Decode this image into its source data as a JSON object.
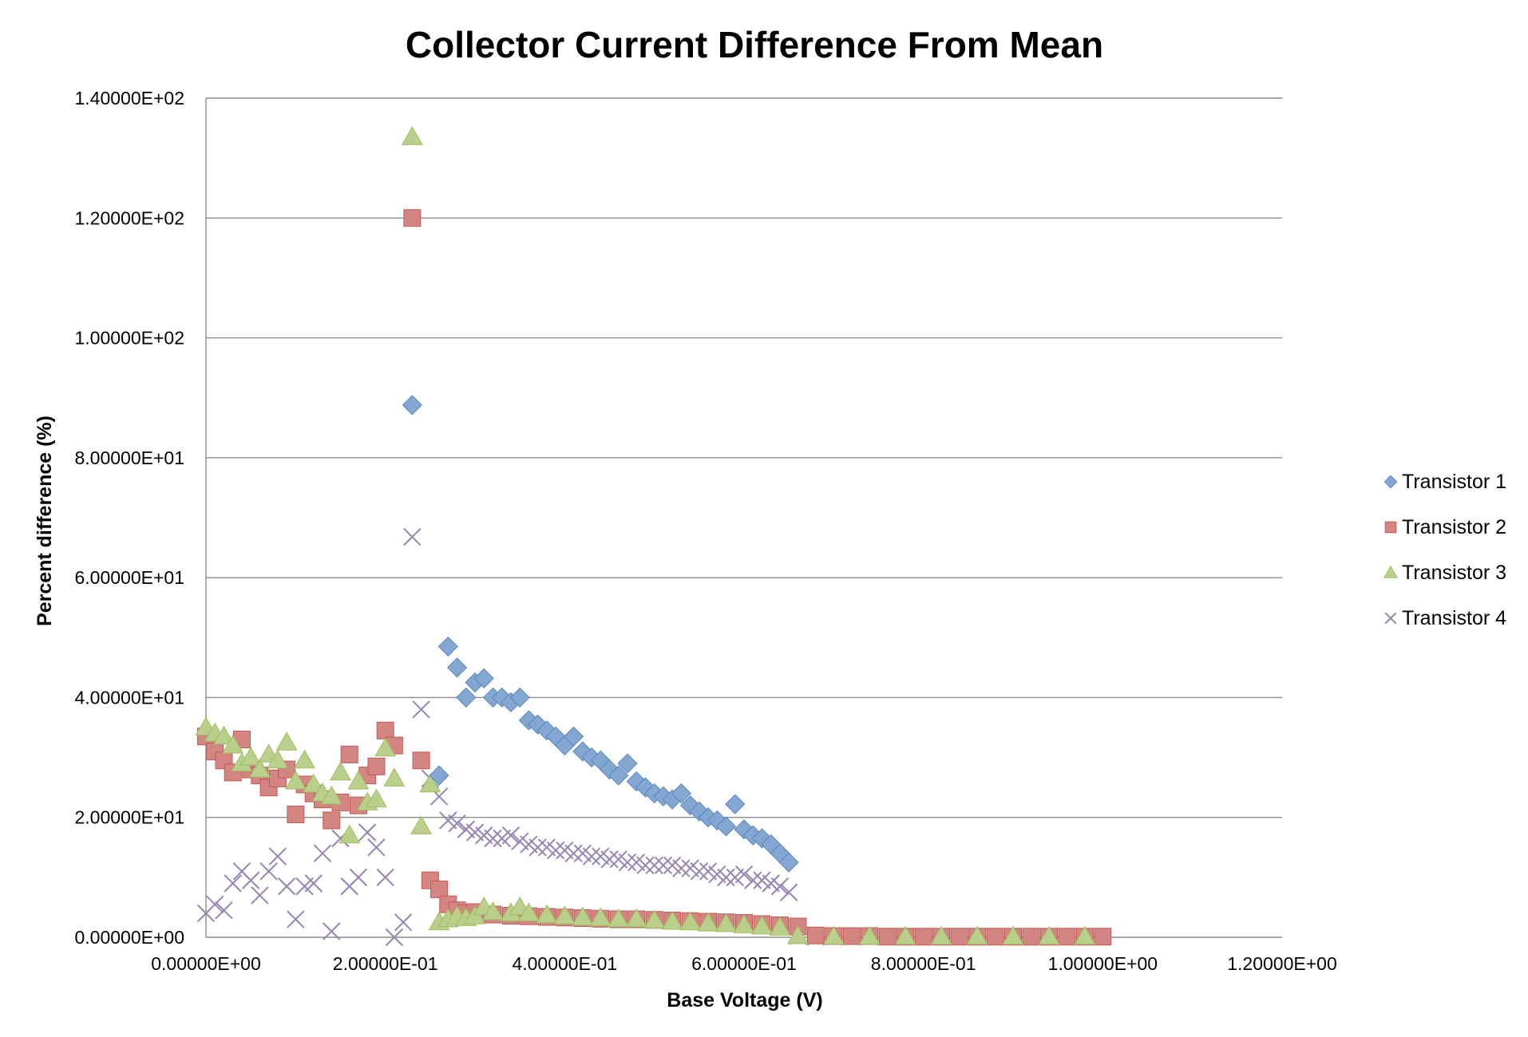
{
  "chart_data": {
    "type": "scatter",
    "title": "Collector Current Difference From Mean",
    "xlabel": "Base Voltage (V)",
    "ylabel": "Percent difference (%)",
    "xlim": [
      0,
      1.2
    ],
    "ylim": [
      0,
      140
    ],
    "x_ticks": [
      0,
      0.2,
      0.4,
      0.6,
      0.8,
      1.0,
      1.2
    ],
    "x_tick_labels": [
      "0.00000E+00",
      "2.00000E-01",
      "4.00000E-01",
      "6.00000E-01",
      "8.00000E-01",
      "1.00000E+00",
      "1.20000E+00"
    ],
    "y_ticks": [
      0,
      20,
      40,
      60,
      80,
      100,
      120,
      140
    ],
    "y_tick_labels": [
      "0.00000E+00",
      "2.00000E+01",
      "4.00000E+01",
      "6.00000E+01",
      "8.00000E+01",
      "1.00000E+02",
      "1.20000E+02",
      "1.40000E+02"
    ],
    "grid": "horizontal",
    "legend_position": "right",
    "series": [
      {
        "name": "Transistor 1",
        "marker": "diamond",
        "color": "#4f81bd",
        "points": [
          [
            0.23,
            88.8
          ],
          [
            0.27,
            48.5
          ],
          [
            0.28,
            45.0
          ],
          [
            0.29,
            40.0
          ],
          [
            0.3,
            42.5
          ],
          [
            0.31,
            43.2
          ],
          [
            0.32,
            40.0
          ],
          [
            0.33,
            40.0
          ],
          [
            0.34,
            39.2
          ],
          [
            0.35,
            40.0
          ],
          [
            0.36,
            36.2
          ],
          [
            0.37,
            35.5
          ],
          [
            0.38,
            34.5
          ],
          [
            0.39,
            33.5
          ],
          [
            0.4,
            32.0
          ],
          [
            0.41,
            33.5
          ],
          [
            0.42,
            31.0
          ],
          [
            0.43,
            30.0
          ],
          [
            0.44,
            29.5
          ],
          [
            0.45,
            28.0
          ],
          [
            0.46,
            27.0
          ],
          [
            0.47,
            29.0
          ],
          [
            0.48,
            26.0
          ],
          [
            0.49,
            25.0
          ],
          [
            0.5,
            24.0
          ],
          [
            0.51,
            23.5
          ],
          [
            0.52,
            23.0
          ],
          [
            0.53,
            24.0
          ],
          [
            0.54,
            22.0
          ],
          [
            0.55,
            21.0
          ],
          [
            0.56,
            20.0
          ],
          [
            0.57,
            19.5
          ],
          [
            0.58,
            18.5
          ],
          [
            0.59,
            22.2
          ],
          [
            0.6,
            18.0
          ],
          [
            0.61,
            17.0
          ],
          [
            0.62,
            16.5
          ],
          [
            0.63,
            15.5
          ],
          [
            0.64,
            14.0
          ],
          [
            0.65,
            12.5
          ],
          [
            0.26,
            27.0
          ]
        ]
      },
      {
        "name": "Transistor 2",
        "marker": "square",
        "color": "#c0504d",
        "points": [
          [
            0.0,
            33.5
          ],
          [
            0.01,
            31.0
          ],
          [
            0.02,
            29.5
          ],
          [
            0.03,
            27.5
          ],
          [
            0.04,
            33.0
          ],
          [
            0.05,
            28.0
          ],
          [
            0.06,
            27.0
          ],
          [
            0.07,
            25.0
          ],
          [
            0.08,
            26.5
          ],
          [
            0.09,
            28.0
          ],
          [
            0.1,
            20.5
          ],
          [
            0.11,
            25.5
          ],
          [
            0.12,
            24.0
          ],
          [
            0.13,
            23.0
          ],
          [
            0.14,
            19.5
          ],
          [
            0.15,
            22.5
          ],
          [
            0.16,
            30.5
          ],
          [
            0.17,
            22.0
          ],
          [
            0.18,
            27.0
          ],
          [
            0.19,
            28.5
          ],
          [
            0.2,
            34.5
          ],
          [
            0.21,
            32.0
          ],
          [
            0.23,
            120.0
          ],
          [
            0.24,
            29.5
          ],
          [
            0.25,
            9.5
          ],
          [
            0.26,
            8.0
          ],
          [
            0.27,
            5.5
          ],
          [
            0.28,
            4.5
          ],
          [
            0.29,
            4.0
          ],
          [
            0.3,
            4.2
          ],
          [
            0.32,
            3.8
          ],
          [
            0.34,
            3.6
          ],
          [
            0.36,
            3.5
          ],
          [
            0.38,
            3.4
          ],
          [
            0.4,
            3.3
          ],
          [
            0.42,
            3.2
          ],
          [
            0.44,
            3.1
          ],
          [
            0.46,
            3.0
          ],
          [
            0.48,
            3.0
          ],
          [
            0.5,
            2.9
          ],
          [
            0.52,
            2.8
          ],
          [
            0.54,
            2.7
          ],
          [
            0.56,
            2.6
          ],
          [
            0.58,
            2.5
          ],
          [
            0.6,
            2.4
          ],
          [
            0.62,
            2.2
          ],
          [
            0.64,
            2.0
          ],
          [
            0.66,
            1.8
          ],
          [
            0.68,
            0.3
          ],
          [
            0.7,
            0.2
          ],
          [
            0.72,
            0.2
          ],
          [
            0.74,
            0.2
          ],
          [
            0.76,
            0.1
          ],
          [
            0.78,
            0.1
          ],
          [
            0.8,
            0.1
          ],
          [
            0.82,
            0.1
          ],
          [
            0.84,
            0.1
          ],
          [
            0.86,
            0.1
          ],
          [
            0.88,
            0.1
          ],
          [
            0.9,
            0.1
          ],
          [
            0.92,
            0.1
          ],
          [
            0.94,
            0.1
          ],
          [
            0.96,
            0.1
          ],
          [
            0.98,
            0.1
          ],
          [
            1.0,
            0.1
          ]
        ]
      },
      {
        "name": "Transistor 3",
        "marker": "triangle",
        "color": "#9bbb59",
        "points": [
          [
            0.0,
            35.0
          ],
          [
            0.01,
            34.0
          ],
          [
            0.02,
            33.5
          ],
          [
            0.03,
            32.0
          ],
          [
            0.04,
            29.0
          ],
          [
            0.05,
            30.0
          ],
          [
            0.06,
            28.0
          ],
          [
            0.07,
            30.5
          ],
          [
            0.08,
            29.5
          ],
          [
            0.09,
            32.5
          ],
          [
            0.1,
            26.0
          ],
          [
            0.11,
            29.5
          ],
          [
            0.12,
            25.5
          ],
          [
            0.13,
            24.0
          ],
          [
            0.14,
            23.5
          ],
          [
            0.15,
            27.5
          ],
          [
            0.16,
            17.0
          ],
          [
            0.17,
            26.0
          ],
          [
            0.18,
            22.5
          ],
          [
            0.19,
            23.0
          ],
          [
            0.2,
            31.5
          ],
          [
            0.21,
            26.5
          ],
          [
            0.23,
            133.5
          ],
          [
            0.24,
            18.5
          ],
          [
            0.25,
            25.5
          ],
          [
            0.26,
            2.5
          ],
          [
            0.27,
            3.0
          ],
          [
            0.28,
            3.5
          ],
          [
            0.29,
            3.2
          ],
          [
            0.3,
            3.5
          ],
          [
            0.31,
            5.0
          ],
          [
            0.32,
            4.2
          ],
          [
            0.34,
            4.0
          ],
          [
            0.35,
            5.0
          ],
          [
            0.36,
            4.0
          ],
          [
            0.38,
            3.7
          ],
          [
            0.4,
            3.5
          ],
          [
            0.42,
            3.3
          ],
          [
            0.44,
            3.2
          ],
          [
            0.46,
            3.0
          ],
          [
            0.48,
            3.0
          ],
          [
            0.5,
            2.8
          ],
          [
            0.52,
            2.6
          ],
          [
            0.54,
            2.5
          ],
          [
            0.56,
            2.3
          ],
          [
            0.58,
            2.2
          ],
          [
            0.6,
            2.0
          ],
          [
            0.62,
            1.8
          ],
          [
            0.64,
            1.6
          ],
          [
            0.66,
            0.2
          ],
          [
            0.7,
            0.1
          ],
          [
            0.74,
            0.1
          ],
          [
            0.78,
            0.1
          ],
          [
            0.82,
            0.1
          ],
          [
            0.86,
            0.1
          ],
          [
            0.9,
            0.1
          ],
          [
            0.94,
            0.1
          ],
          [
            0.98,
            0.1
          ]
        ]
      },
      {
        "name": "Transistor 4",
        "marker": "x",
        "color": "#8064a2",
        "points": [
          [
            0.0,
            4.0
          ],
          [
            0.01,
            5.5
          ],
          [
            0.02,
            4.5
          ],
          [
            0.03,
            9.0
          ],
          [
            0.04,
            11.0
          ],
          [
            0.05,
            9.5
          ],
          [
            0.06,
            7.0
          ],
          [
            0.07,
            11.0
          ],
          [
            0.08,
            13.5
          ],
          [
            0.09,
            8.5
          ],
          [
            0.1,
            3.0
          ],
          [
            0.11,
            8.5
          ],
          [
            0.12,
            9.0
          ],
          [
            0.13,
            14.0
          ],
          [
            0.14,
            1.0
          ],
          [
            0.15,
            16.5
          ],
          [
            0.16,
            8.5
          ],
          [
            0.17,
            10.0
          ],
          [
            0.18,
            17.5
          ],
          [
            0.19,
            15.0
          ],
          [
            0.2,
            10.0
          ],
          [
            0.21,
            0.0
          ],
          [
            0.22,
            2.5
          ],
          [
            0.23,
            66.8
          ],
          [
            0.24,
            38.0
          ],
          [
            0.25,
            26.5
          ],
          [
            0.26,
            23.5
          ],
          [
            0.27,
            19.5
          ],
          [
            0.28,
            19.0
          ],
          [
            0.29,
            18.0
          ],
          [
            0.3,
            17.5
          ],
          [
            0.31,
            17.0
          ],
          [
            0.32,
            16.5
          ],
          [
            0.33,
            16.5
          ],
          [
            0.34,
            17.0
          ],
          [
            0.35,
            16.0
          ],
          [
            0.36,
            15.5
          ],
          [
            0.37,
            15.0
          ],
          [
            0.38,
            15.0
          ],
          [
            0.39,
            14.5
          ],
          [
            0.4,
            14.5
          ],
          [
            0.41,
            14.0
          ],
          [
            0.42,
            14.0
          ],
          [
            0.43,
            13.5
          ],
          [
            0.44,
            13.5
          ],
          [
            0.45,
            13.0
          ],
          [
            0.46,
            13.0
          ],
          [
            0.47,
            12.5
          ],
          [
            0.48,
            12.5
          ],
          [
            0.49,
            12.0
          ],
          [
            0.5,
            12.0
          ],
          [
            0.51,
            12.0
          ],
          [
            0.52,
            12.0
          ],
          [
            0.53,
            11.5
          ],
          [
            0.54,
            11.5
          ],
          [
            0.55,
            11.0
          ],
          [
            0.56,
            11.0
          ],
          [
            0.57,
            10.5
          ],
          [
            0.58,
            10.0
          ],
          [
            0.59,
            10.0
          ],
          [
            0.6,
            10.5
          ],
          [
            0.61,
            9.5
          ],
          [
            0.62,
            9.5
          ],
          [
            0.63,
            9.0
          ],
          [
            0.64,
            8.5
          ],
          [
            0.65,
            7.5
          ],
          [
            0.66,
            0.2
          ],
          [
            0.68,
            0.1
          ],
          [
            0.7,
            0.1
          ],
          [
            0.72,
            0.1
          ],
          [
            0.74,
            0.1
          ],
          [
            0.76,
            0.1
          ],
          [
            0.78,
            0.1
          ],
          [
            0.8,
            0.1
          ],
          [
            0.82,
            0.1
          ],
          [
            0.84,
            0.1
          ],
          [
            0.86,
            0.1
          ],
          [
            0.88,
            0.1
          ],
          [
            0.9,
            0.1
          ],
          [
            0.92,
            0.1
          ],
          [
            0.94,
            0.1
          ],
          [
            0.96,
            0.1
          ],
          [
            0.98,
            0.1
          ],
          [
            1.0,
            0.1
          ]
        ]
      }
    ]
  }
}
